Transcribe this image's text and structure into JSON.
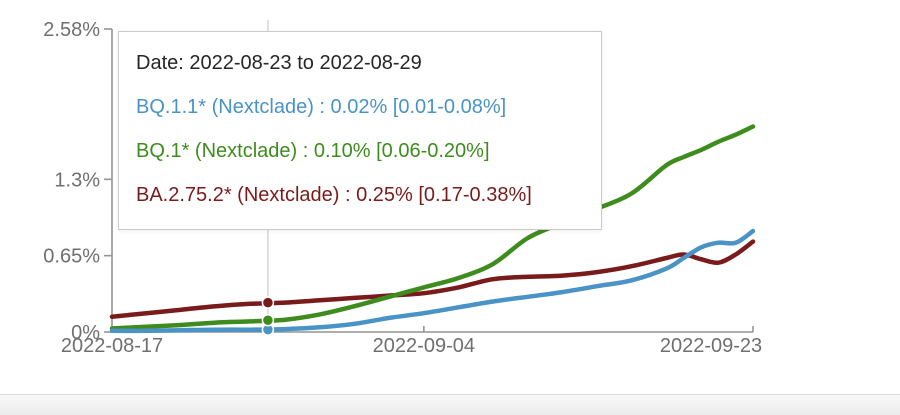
{
  "tooltip": {
    "date_line": "Date: 2022-08-23 to 2022-08-29",
    "date_color": "#262626",
    "lines": [
      {
        "text": "BQ.1.1* (Nextclade) : 0.02% [0.01-0.08%]",
        "color": "#4a93c6"
      },
      {
        "text": "BQ.1* (Nextclade) : 0.10% [0.06-0.20%]",
        "color": "#3e8c1e"
      },
      {
        "text": "BA.2.75.2* (Nextclade) : 0.25% [0.17-0.38%]",
        "color": "#7a1b1b"
      }
    ]
  },
  "chart_data": {
    "type": "line",
    "title": "",
    "xlabel": "",
    "ylabel": "",
    "grid": false,
    "legend_position": "none",
    "ylim": [
      0,
      2.58
    ],
    "y_ticks": [
      {
        "value": 0,
        "label": "0%"
      },
      {
        "value": 0.65,
        "label": "0.65%"
      },
      {
        "value": 1.3,
        "label": "1.3%"
      },
      {
        "value": 2.58,
        "label": "2.58%"
      }
    ],
    "x_ticks": [
      {
        "date": "2022-08-17",
        "label": "2022-08-17"
      },
      {
        "date": "2022-09-04",
        "label": "2022-09-04"
      },
      {
        "date": "2022-09-23",
        "label": "2022-09-23"
      }
    ],
    "dates": [
      "2022-08-17",
      "2022-08-19",
      "2022-08-21",
      "2022-08-23",
      "2022-08-25",
      "2022-08-27",
      "2022-08-29",
      "2022-08-31",
      "2022-09-02",
      "2022-09-04",
      "2022-09-06",
      "2022-09-08",
      "2022-09-10",
      "2022-09-12",
      "2022-09-14",
      "2022-09-16",
      "2022-09-18",
      "2022-09-19",
      "2022-09-20",
      "2022-09-21",
      "2022-09-22",
      "2022-09-23"
    ],
    "series": [
      {
        "name": "BQ.1.1* (Nextclade)",
        "color": "#4a93c6",
        "values": [
          0.01,
          0.01,
          0.015,
          0.02,
          0.02,
          0.025,
          0.04,
          0.07,
          0.12,
          0.16,
          0.21,
          0.26,
          0.3,
          0.34,
          0.39,
          0.44,
          0.54,
          0.63,
          0.72,
          0.76,
          0.76,
          0.86
        ]
      },
      {
        "name": "BQ.1* (Nextclade)",
        "color": "#3e8c1e",
        "values": [
          0.03,
          0.045,
          0.06,
          0.08,
          0.09,
          0.105,
          0.15,
          0.22,
          0.3,
          0.38,
          0.46,
          0.58,
          0.8,
          0.93,
          1.05,
          1.18,
          1.42,
          1.49,
          1.55,
          1.62,
          1.68,
          1.75
        ]
      },
      {
        "name": "BA.2.75.2* (Nextclade)",
        "color": "#7a1b1b",
        "values": [
          0.13,
          0.16,
          0.19,
          0.22,
          0.24,
          0.25,
          0.27,
          0.29,
          0.31,
          0.33,
          0.38,
          0.45,
          0.47,
          0.48,
          0.51,
          0.56,
          0.63,
          0.66,
          0.62,
          0.59,
          0.66,
          0.77
        ]
      }
    ],
    "hover": {
      "date": "2022-08-26",
      "week_label": "2022-08-23 to 2022-08-29",
      "points": [
        {
          "series": "BQ.1.1* (Nextclade)",
          "value": 0.02,
          "ci": "[0.01-0.08%]",
          "color": "#4a93c6"
        },
        {
          "series": "BQ.1* (Nextclade)",
          "value": 0.1,
          "ci": "[0.06-0.20%]",
          "color": "#3e8c1e"
        },
        {
          "series": "BA.2.75.2* (Nextclade)",
          "value": 0.25,
          "ci": "[0.17-0.38%]",
          "color": "#7a1b1b"
        }
      ]
    }
  },
  "colors": {
    "axis_line": "#949494",
    "axis_text": "#6f6f6f",
    "crosshair": "#cfcfcf",
    "tooltip_border": "#cccccc"
  }
}
